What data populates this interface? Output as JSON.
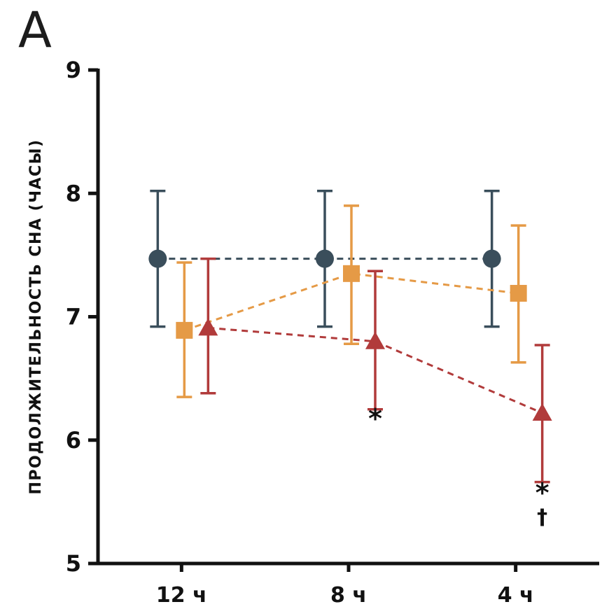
{
  "panel_label": "A",
  "chart_data": {
    "type": "line",
    "title": "",
    "xlabel": "",
    "ylabel": "ПРОДОЛЖИТЕЛЬНОСТЬ СНА  (ЧАСЫ)",
    "categories": [
      "12 ч",
      "8 ч",
      "4 ч"
    ],
    "ylim": [
      5,
      9
    ],
    "yticks": [
      5,
      6,
      7,
      8,
      9
    ],
    "grid": false,
    "legend": "none",
    "axis_color": "#111111",
    "series": [
      {
        "name": "circle-series",
        "marker": "circle",
        "color": "#3a4e5b",
        "values": [
          7.47,
          7.47,
          7.47
        ],
        "upper": [
          8.02,
          8.02,
          8.02
        ],
        "lower": [
          6.92,
          6.92,
          6.92
        ],
        "x_offset": -34
      },
      {
        "name": "square-series",
        "marker": "square",
        "color": "#e59a46",
        "values": [
          6.89,
          7.35,
          7.19
        ],
        "upper": [
          7.44,
          7.9,
          7.74
        ],
        "lower": [
          6.35,
          6.78,
          6.63
        ],
        "x_offset": 4
      },
      {
        "name": "triangle-series",
        "marker": "triangle",
        "color": "#b13b3b",
        "values": [
          6.91,
          6.8,
          6.22
        ],
        "upper": [
          7.47,
          7.37,
          6.77
        ],
        "lower": [
          6.38,
          6.25,
          5.66
        ],
        "x_offset": 38
      }
    ],
    "annotations": [
      {
        "text": "*",
        "category_index": 1,
        "align_series": 2,
        "y": 6.1
      },
      {
        "text": "*",
        "category_index": 2,
        "align_series": 2,
        "y": 5.5
      },
      {
        "text": "†",
        "category_index": 2,
        "align_series": 2,
        "y": 5.32
      }
    ]
  }
}
